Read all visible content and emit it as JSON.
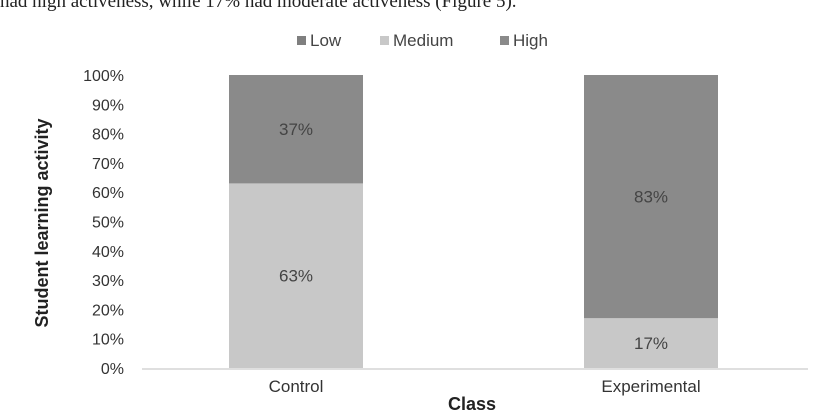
{
  "context_text": "had high activeness, while 17% had moderate activeness (Figure 5).",
  "colors": {
    "low": "#7f7f7f",
    "medium": "#c8c8c8",
    "high": "#8a8a8a"
  },
  "chart_data": {
    "type": "bar",
    "stacked": true,
    "categories": [
      "Control",
      "Experimental"
    ],
    "series": [
      {
        "name": "Low",
        "values": [
          0,
          0
        ],
        "labels": [
          "",
          ""
        ]
      },
      {
        "name": "Medium",
        "values": [
          63,
          17
        ],
        "labels": [
          "63%",
          "17%"
        ]
      },
      {
        "name": "High",
        "values": [
          37,
          83
        ],
        "labels": [
          "37%",
          "83%"
        ]
      }
    ],
    "y_ticks": [
      "0%",
      "10%",
      "20%",
      "30%",
      "40%",
      "50%",
      "60%",
      "70%",
      "80%",
      "90%",
      "100%"
    ],
    "ylim": [
      0,
      100
    ],
    "xlabel": "Class",
    "ylabel": "Student learning activity",
    "legend": "top",
    "grid": false
  }
}
